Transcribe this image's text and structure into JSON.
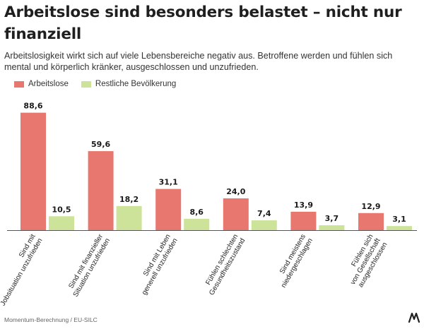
{
  "header": {
    "title": "Arbeitslose sind besonders belastet – nicht nur finanziell",
    "subtitle": "Arbeitslosigkeit wirkt sich auf viele Lebensbereiche negativ aus. Betroffene werden und fühlen sich mental und körperlich kränker, ausgeschlossen und unzufrieden."
  },
  "colors": {
    "series1": "#e8776f",
    "series2": "#cde39a",
    "baseline": "#555555",
    "text": "#1a1a1a"
  },
  "chart_data": {
    "type": "bar",
    "title": "Arbeitslose sind besonders belastet – nicht nur finanziell",
    "xlabel": "",
    "ylabel": "",
    "ylim": [
      0,
      90
    ],
    "grid": false,
    "legend": "top-left",
    "categories": [
      [
        "Sind mit",
        "Jobsituation unzufrieden"
      ],
      [
        "Sind mit finanzieller",
        "Situation unzufrieden"
      ],
      [
        "Sind mit Leben",
        "generell unzufrieden"
      ],
      [
        "Fühlen schlechten",
        "Gesundheitszustand"
      ],
      [
        "Sind meistens",
        "niedergeschlagen"
      ],
      [
        "Fühlen sich",
        "von Gesellschaft",
        "ausgeschlossen"
      ]
    ],
    "series": [
      {
        "name": "Arbeitslose",
        "values": [
          88.6,
          59.6,
          31.1,
          24.0,
          13.9,
          12.9
        ],
        "labels": [
          "88,6",
          "59,6",
          "31,1",
          "24,0",
          "13,9",
          "12,9"
        ]
      },
      {
        "name": "Restliche Bevölkerung",
        "values": [
          10.5,
          18.2,
          8.6,
          7.4,
          3.7,
          3.1
        ],
        "labels": [
          "10,5",
          "18,2",
          "8,6",
          "7,4",
          "3,7",
          "3,1"
        ]
      }
    ]
  },
  "footer": {
    "source": "Momentum-Berechnung / EU-SILC",
    "logo_text": "M"
  }
}
